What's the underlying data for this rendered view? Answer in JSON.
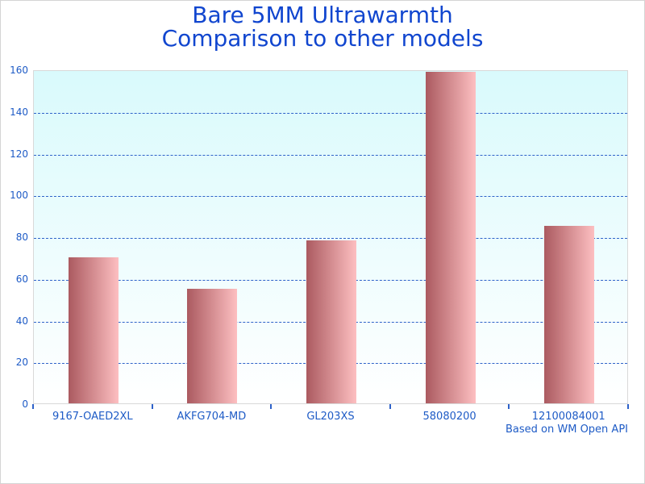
{
  "chart_data": {
    "type": "bar",
    "title": "Bare 5MM Ultrawarmth Comparison to other models",
    "title_lines": [
      "Bare 5MM Ultrawarmth",
      "Comparison to other models"
    ],
    "categories": [
      "9167-OAED2XL",
      "AKFG704-MD",
      "GL203XS",
      "58080200",
      "12100084001"
    ],
    "values": [
      70,
      55,
      78,
      159,
      85
    ],
    "xlabel": "",
    "ylabel": "",
    "ylim": [
      0,
      160
    ],
    "y_ticks": [
      0,
      20,
      40,
      60,
      80,
      100,
      120,
      140,
      160
    ],
    "grid": "horizontal-dashed",
    "legend": "none",
    "footer": "Based on WM Open API",
    "colors": {
      "title": "#1146cf",
      "tick_label": "#1e5bc6",
      "gridline": "#2e62c9",
      "bar_gradient_left": "#ab5a60",
      "bar_gradient_right": "#fdbfc1",
      "plot_bg_top": "#d9fafc",
      "plot_bg_bottom": "#ffffff",
      "plot_border": "#d9d9d9",
      "outer_border": "#d4d4d4"
    }
  }
}
